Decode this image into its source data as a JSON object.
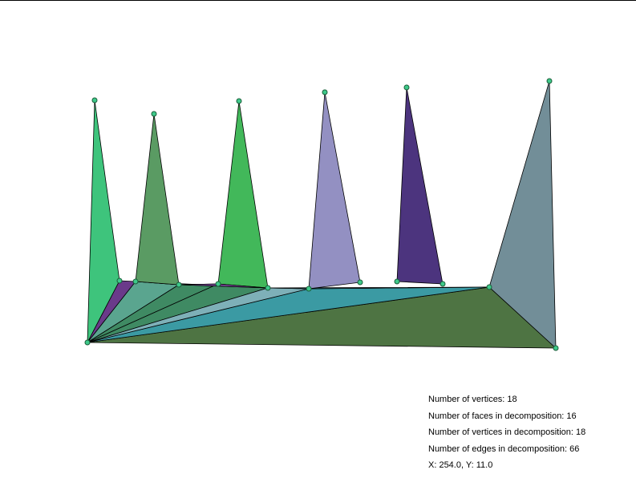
{
  "stats": {
    "vertices": "Number of vertices: 18",
    "faces": "Number of faces in decomposition: 16",
    "decomp_vertices": "Number of vertices in decomposition: 18",
    "decomp_edges": "Number of edges in decomposition: 66",
    "coords": "X: 254.0, Y: 11.0"
  },
  "colors": {
    "edge": "#000000",
    "vertex_fill": "#3ec98a",
    "vertex_stroke": "#1b5e3a"
  },
  "faces": [
    {
      "color": "#4e7443"
    },
    {
      "color": "#3b9aa3"
    },
    {
      "color": "#5aa58f"
    },
    {
      "color": "#3f8a63"
    },
    {
      "color": "#3f8a63"
    },
    {
      "color": "#7eb0b8"
    },
    {
      "color": "#3b9aa3"
    },
    {
      "color": "#6a3a8a"
    },
    {
      "color": "#5aa58f"
    },
    {
      "color": "#3ec47c"
    },
    {
      "color": "#5a9b63"
    },
    {
      "color": "#42b85a"
    },
    {
      "color": "#9390c2"
    },
    {
      "color": "#4c347e"
    },
    {
      "color": "#728e98"
    },
    {
      "color": "#7e46a0"
    }
  ]
}
